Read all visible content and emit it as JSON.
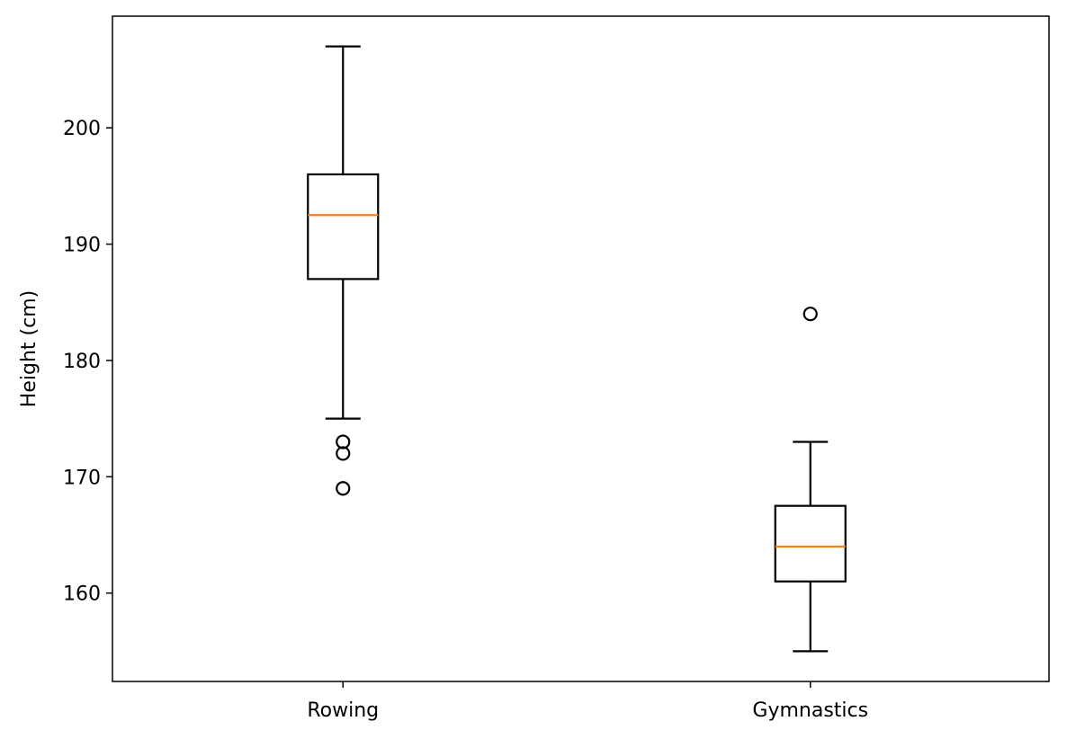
{
  "chart_data": {
    "type": "box",
    "title": "",
    "xlabel": "",
    "ylabel": "Height (cm)",
    "ylim": [
      152.4,
      209.6
    ],
    "yticks": [
      160,
      170,
      180,
      190,
      200
    ],
    "grid": false,
    "categories": [
      "Rowing",
      "Gymnastics"
    ],
    "series": [
      {
        "name": "Rowing",
        "whisker_low": 175,
        "q1": 187,
        "median": 192.5,
        "q3": 196,
        "whisker_high": 207,
        "outliers": [
          173,
          172,
          169
        ]
      },
      {
        "name": "Gymnastics",
        "whisker_low": 155,
        "q1": 161,
        "median": 164,
        "q3": 167.5,
        "whisker_high": 173,
        "outliers": [
          184
        ]
      }
    ],
    "colors": {
      "box": "#000000",
      "median": "#ff7f0e"
    }
  }
}
